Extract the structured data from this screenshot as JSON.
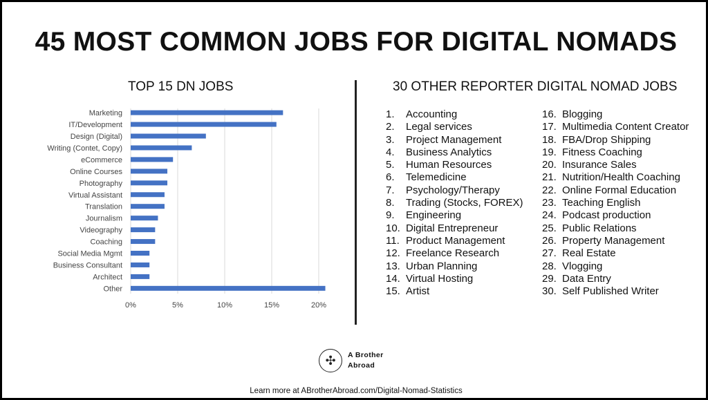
{
  "title": "45 MOST COMMON JOBS FOR DIGITAL NOMADS",
  "chart_section_title": "TOP 15 DN JOBS",
  "list_section_title": "30 OTHER REPORTER DIGITAL NOMAD JOBS",
  "chart_data": {
    "type": "bar",
    "orientation": "horizontal",
    "categories": [
      "Marketing",
      "IT/Development",
      "Design (Digital)",
      "Writing (Contet, Copy)",
      "eCommerce",
      "Online Courses",
      "Photography",
      "Virtual Assistant",
      "Translation",
      "Journalism",
      "Videography",
      "Coaching",
      "Social Media Mgmt",
      "Business Consultant",
      "Architect",
      "Other"
    ],
    "values": [
      16.2,
      15.5,
      8.0,
      6.5,
      4.5,
      3.9,
      3.9,
      3.6,
      3.6,
      2.9,
      2.6,
      2.6,
      2.0,
      2.0,
      2.0,
      20.7
    ],
    "xlim": [
      0,
      20
    ],
    "x_ticks": [
      "0%",
      "5%",
      "10%",
      "15%",
      "20%"
    ],
    "grid": true,
    "color": "#4472c4"
  },
  "jobs_col1": [
    {
      "num": "1.",
      "text": "Accounting"
    },
    {
      "num": "2.",
      "text": "Legal services"
    },
    {
      "num": "3.",
      "text": "Project Management"
    },
    {
      "num": "4.",
      "text": "Business Analytics"
    },
    {
      "num": "5.",
      "text": "Human Resources"
    },
    {
      "num": "6.",
      "text": "Telemedicine"
    },
    {
      "num": "7.",
      "text": "Psychology/Therapy"
    },
    {
      "num": "8.",
      "text": "Trading (Stocks, FOREX)"
    },
    {
      "num": "9.",
      "text": "Engineering"
    },
    {
      "num": "10.",
      "text": "Digital Entrepreneur"
    },
    {
      "num": "11.",
      "text": "Product Management"
    },
    {
      "num": "12.",
      "text": "Freelance Research"
    },
    {
      "num": "13.",
      "text": "Urban Planning"
    },
    {
      "num": "14.",
      "text": "Virtual Hosting"
    },
    {
      "num": "15.",
      "text": "Artist"
    }
  ],
  "jobs_col2": [
    {
      "num": "16.",
      "text": "Blogging"
    },
    {
      "num": "17.",
      "text": "Multimedia Content Creator"
    },
    {
      "num": "18.",
      "text": "FBA/Drop Shipping"
    },
    {
      "num": "19.",
      "text": "Fitness Coaching"
    },
    {
      "num": "20.",
      "text": "Insurance Sales"
    },
    {
      "num": "21.",
      "text": "Nutrition/Health Coaching"
    },
    {
      "num": "22.",
      "text": "Online Formal Education"
    },
    {
      "num": "23.",
      "text": "Teaching English"
    },
    {
      "num": "24.",
      "text": "Podcast production"
    },
    {
      "num": "25.",
      "text": "Public Relations"
    },
    {
      "num": "26.",
      "text": "Property Management"
    },
    {
      "num": "27.",
      "text": "Real Estate"
    },
    {
      "num": "28.",
      "text": "Vlogging"
    },
    {
      "num": "29.",
      "text": "Data Entry"
    },
    {
      "num": "30.",
      "text": "Self Published Writer"
    }
  ],
  "brand": {
    "line1": "A Brother",
    "line2": "Abroad",
    "icon": "compass-icon"
  },
  "footer": "Learn more at ABrotherAbroad.com/Digital-Nomad-Statistics"
}
